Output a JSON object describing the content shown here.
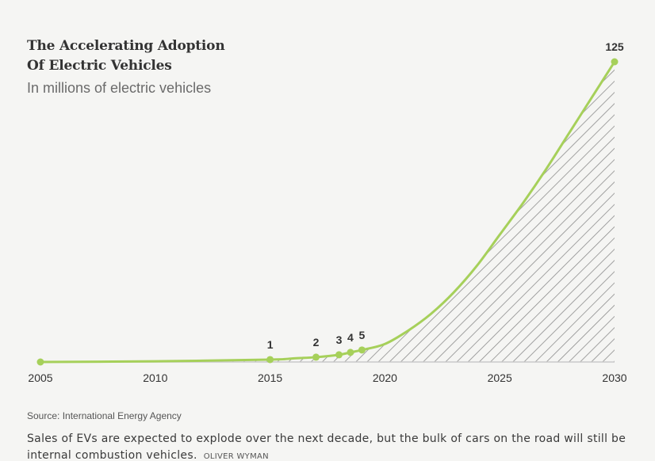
{
  "chart_data": {
    "type": "area",
    "title": "The Accelerating Adoption Of Electric Vehicles",
    "title_lines": [
      "The Accelerating Adoption",
      "Of Electric Vehicles"
    ],
    "subtitle": "In millions of electric vehicles",
    "xlabel": "",
    "ylabel": "",
    "xlim": [
      2005,
      2030
    ],
    "ylim": [
      0,
      125
    ],
    "x_ticks": [
      "2005",
      "2010",
      "2015",
      "2020",
      "2025",
      "2030"
    ],
    "grid": false,
    "series": [
      {
        "name": "Electric vehicles (millions)",
        "x": [
          2005,
          2010,
          2015,
          2016,
          2017,
          2018,
          2018.5,
          2019,
          2020,
          2021,
          2022,
          2023,
          2024,
          2025,
          2026,
          2027,
          2028,
          2029,
          2030
        ],
        "values": [
          0,
          0.3,
          1,
          1.5,
          2,
          3,
          4,
          5,
          7.5,
          13,
          20,
          29,
          40,
          53,
          66,
          80,
          95,
          110,
          125
        ]
      }
    ],
    "markers": [
      {
        "x": 2005,
        "value": 0,
        "label": ""
      },
      {
        "x": 2015,
        "value": 1,
        "label": "1"
      },
      {
        "x": 2017,
        "value": 2,
        "label": "2"
      },
      {
        "x": 2018,
        "value": 3,
        "label": "3"
      },
      {
        "x": 2018.5,
        "value": 4,
        "label": "4"
      },
      {
        "x": 2019,
        "value": 5,
        "label": "5"
      },
      {
        "x": 2030,
        "value": 125,
        "label": "125"
      }
    ],
    "colors": {
      "line": "#a6d05a",
      "hatch": "#8c8c8c",
      "axis": "#c9c9c9",
      "text": "#333333"
    }
  },
  "source": "Source: International Energy Agency",
  "caption": "Sales of EVs are expected to explode over the next decade, but the bulk of cars on the road will still be internal combustion vehicles.",
  "credit": "OLIVER WYMAN"
}
